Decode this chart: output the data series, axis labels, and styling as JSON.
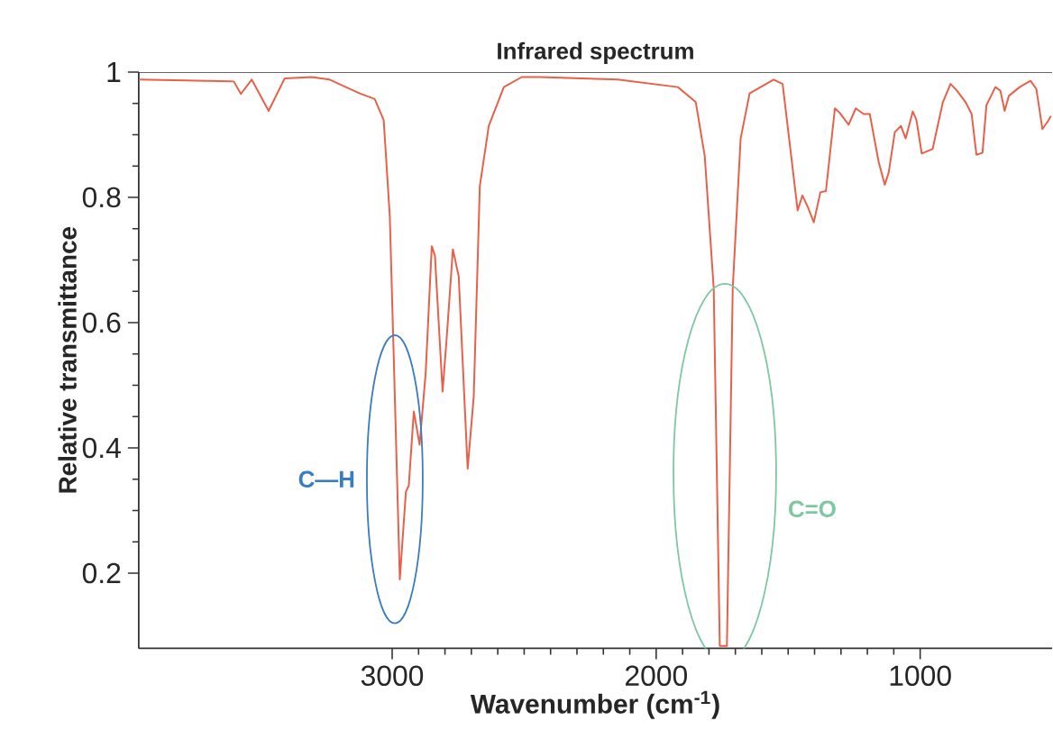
{
  "chart_data": {
    "type": "line",
    "title": "Infrared spectrum",
    "xlabel": "Wavenumber (cm$^{-1}$)",
    "ylabel": "Relative transmittance",
    "x": [
      3960,
      3600,
      3573,
      3532,
      3468,
      3407,
      3305,
      3237,
      3123,
      3066,
      3032,
      3009,
      2993,
      2971,
      2948,
      2937,
      2918,
      2896,
      2873,
      2850,
      2838,
      2809,
      2793,
      2770,
      2748,
      2714,
      2691,
      2668,
      2634,
      2577,
      2509,
      2441,
      2146,
      1918,
      1850,
      1816,
      1782,
      1759,
      1732,
      1710,
      1680,
      1646,
      1555,
      1521,
      1464,
      1446,
      1425,
      1403,
      1378,
      1357,
      1323,
      1305,
      1271,
      1244,
      1214,
      1191,
      1157,
      1134,
      1119,
      1096,
      1073,
      1055,
      1028,
      1014,
      994,
      953,
      914,
      885,
      862,
      828,
      805,
      787,
      764,
      749,
      715,
      696,
      680,
      664,
      623,
      582,
      560,
      537,
      514,
      505
    ],
    "series": [
      {
        "color": "#e8604a",
        "values": [
          0.988,
          0.985,
          0.965,
          0.988,
          0.938,
          0.99,
          0.992,
          0.988,
          0.966,
          0.957,
          0.923,
          0.77,
          0.53,
          0.19,
          0.33,
          0.34,
          0.458,
          0.405,
          0.52,
          0.722,
          0.707,
          0.49,
          0.578,
          0.717,
          0.674,
          0.367,
          0.482,
          0.818,
          0.914,
          0.976,
          0.992,
          0.992,
          0.988,
          0.976,
          0.952,
          0.866,
          0.655,
          0.084,
          0.084,
          0.655,
          0.894,
          0.966,
          0.988,
          0.981,
          0.779,
          0.803,
          0.784,
          0.76,
          0.808,
          0.81,
          0.942,
          0.935,
          0.916,
          0.942,
          0.933,
          0.933,
          0.856,
          0.82,
          0.84,
          0.904,
          0.914,
          0.894,
          0.937,
          0.923,
          0.87,
          0.877,
          0.952,
          0.981,
          0.971,
          0.952,
          0.933,
          0.868,
          0.871,
          0.947,
          0.976,
          0.97,
          0.938,
          0.962,
          0.976,
          0.986,
          0.973,
          0.909,
          0.923,
          0.93
        ]
      }
    ],
    "xlim": [
      3960,
      500
    ],
    "ylim": [
      0.08,
      1
    ],
    "xticks": [
      3000,
      2000,
      1000
    ],
    "yticks": [
      0.2,
      0.4,
      0.6,
      0.8,
      1
    ],
    "marker": "none",
    "line_style": "solid",
    "annotations": [
      {
        "text": "C—H",
        "x": 2990,
        "y": 0.35
      },
      {
        "text": "C=O",
        "x": 1740,
        "y": 0.36
      }
    ]
  }
}
